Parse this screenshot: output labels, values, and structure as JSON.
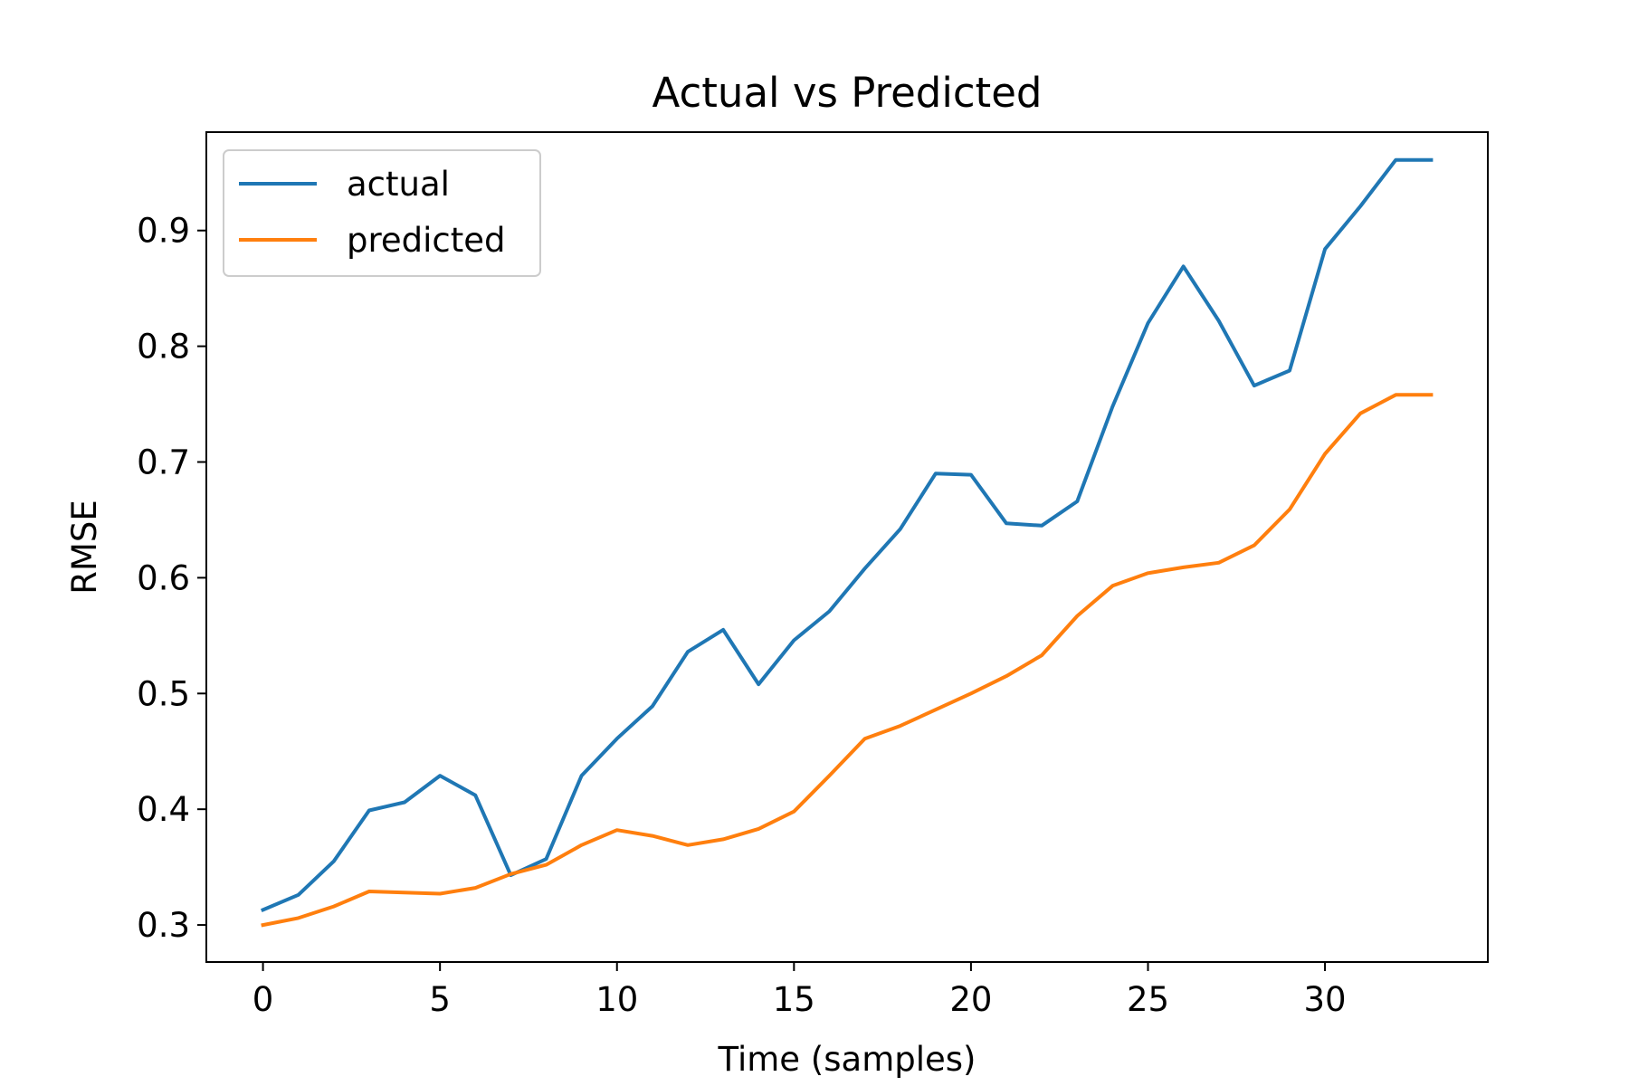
{
  "chart_data": {
    "type": "line",
    "title": "Actual vs Predicted",
    "xlabel": "Time (samples)",
    "ylabel": "RMSE",
    "xlim": [
      -1.6,
      34.6
    ],
    "ylim": [
      0.268,
      0.985
    ],
    "xticks": [
      0,
      5,
      10,
      15,
      20,
      25,
      30
    ],
    "xtick_labels": [
      "0",
      "5",
      "10",
      "15",
      "20",
      "25",
      "30"
    ],
    "yticks": [
      0.3,
      0.4,
      0.5,
      0.6,
      0.7,
      0.8,
      0.9
    ],
    "ytick_labels": [
      "0.3",
      "0.4",
      "0.5",
      "0.6",
      "0.7",
      "0.8",
      "0.9"
    ],
    "grid": false,
    "legend_position": "upper-left",
    "series": [
      {
        "name": "actual",
        "color": "#1f77b4",
        "x": [
          0,
          1,
          2,
          3,
          4,
          5,
          6,
          7,
          8,
          9,
          10,
          11,
          12,
          13,
          14,
          15,
          16,
          17,
          18,
          19,
          20,
          21,
          22,
          23,
          24,
          25,
          26,
          27,
          28,
          29,
          30,
          31,
          32,
          33
        ],
        "values": [
          0.313,
          0.326,
          0.355,
          0.399,
          0.406,
          0.429,
          0.412,
          0.343,
          0.357,
          0.429,
          0.461,
          0.489,
          0.536,
          0.555,
          0.508,
          0.546,
          0.571,
          0.608,
          0.642,
          0.69,
          0.689,
          0.647,
          0.645,
          0.666,
          0.748,
          0.82,
          0.869,
          0.822,
          0.766,
          0.779,
          0.884,
          0.921,
          0.961,
          0.961
        ]
      },
      {
        "name": "predicted",
        "color": "#ff7f0e",
        "x": [
          0,
          1,
          2,
          3,
          4,
          5,
          6,
          7,
          8,
          9,
          10,
          11,
          12,
          13,
          14,
          15,
          16,
          17,
          18,
          19,
          20,
          21,
          22,
          23,
          24,
          25,
          26,
          27,
          28,
          29,
          30,
          31,
          32,
          33
        ],
        "values": [
          0.3,
          0.306,
          0.316,
          0.329,
          0.328,
          0.327,
          0.332,
          0.344,
          0.352,
          0.369,
          0.382,
          0.377,
          0.369,
          0.374,
          0.383,
          0.398,
          0.429,
          0.461,
          0.472,
          0.486,
          0.5,
          0.515,
          0.533,
          0.567,
          0.593,
          0.604,
          0.609,
          0.613,
          0.628,
          0.659,
          0.707,
          0.742,
          0.758,
          0.758
        ]
      }
    ]
  }
}
